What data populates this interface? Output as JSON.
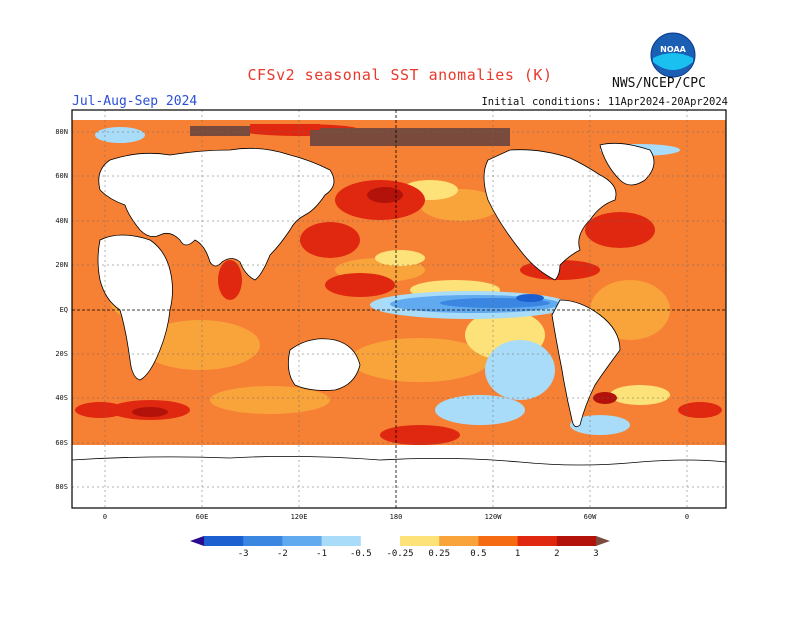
{
  "header": {
    "title": "CFSv2 seasonal SST anomalies (K)",
    "season": "Jul-Aug-Sep 2024",
    "initial_conditions": "Initial conditions: 11Apr2024-20Apr2024",
    "agency": "NWS/NCEP/CPC",
    "logo_text": "NOAA"
  },
  "axes": {
    "lat_ticks": [
      "80N",
      "60N",
      "40N",
      "20N",
      "EQ",
      "20S",
      "40S",
      "60S",
      "80S"
    ],
    "lon_ticks": [
      "0",
      "60E",
      "120E",
      "180",
      "120W",
      "60W",
      "0"
    ]
  },
  "colorbar": {
    "labels": [
      "-3",
      "-2",
      "-1",
      "-0.5",
      "-0.25",
      "0.25",
      "0.5",
      "1",
      "2",
      "3"
    ],
    "colors": [
      "#2a0a8f",
      "#1c5fd0",
      "#3a86e0",
      "#62aaf0",
      "#a8dcf8",
      "#ffffff",
      "#fde27a",
      "#f9a33b",
      "#f46b12",
      "#e02810",
      "#b2120a",
      "#7a4a3c"
    ]
  },
  "colors": {
    "title": "#e8392c",
    "season": "#2a4fd6",
    "land": "#ffffff",
    "frame": "#000000"
  }
}
